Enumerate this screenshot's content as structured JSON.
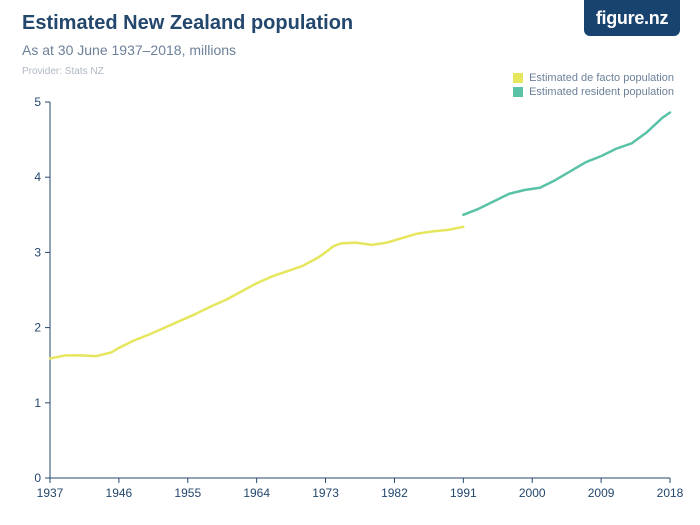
{
  "brand": {
    "name": "figure.nz",
    "bg_color": "#18436f",
    "text_color": "#ffffff"
  },
  "header": {
    "title": "Estimated New Zealand population",
    "subtitle": "As at 30 June 1937–2018, millions",
    "provider": "Provider: Stats NZ",
    "title_fontsize": 20,
    "title_color": "#24476d",
    "subtitle_fontsize": 14,
    "subtitle_color": "#6d8199",
    "provider_fontsize": 10,
    "provider_color": "#b0b8c4"
  },
  "legend": {
    "position": "top-right",
    "fontsize": 11,
    "text_color": "#6d8199",
    "items": [
      {
        "label": "Estimated de facto population",
        "color": "#e6e65e"
      },
      {
        "label": "Estimated resident population",
        "color": "#5ac2a7"
      }
    ]
  },
  "chart": {
    "type": "line",
    "background_color": "#ffffff",
    "axis_color": "#24476d",
    "tick_label_color": "#24476d",
    "tick_fontsize": 12,
    "xlim": [
      1937,
      2018
    ],
    "ylim": [
      0,
      5
    ],
    "ytick_step": 1,
    "xticks": [
      1937,
      1946,
      1955,
      1964,
      1973,
      1982,
      1991,
      2000,
      2009,
      2018
    ],
    "line_width": 2.5,
    "series": [
      {
        "name": "Estimated de facto population",
        "color": "#e6e65e",
        "points": [
          [
            1937,
            1.59
          ],
          [
            1939,
            1.63
          ],
          [
            1941,
            1.63
          ],
          [
            1943,
            1.62
          ],
          [
            1945,
            1.67
          ],
          [
            1946,
            1.73
          ],
          [
            1948,
            1.83
          ],
          [
            1950,
            1.91
          ],
          [
            1952,
            2.0
          ],
          [
            1954,
            2.09
          ],
          [
            1956,
            2.18
          ],
          [
            1958,
            2.28
          ],
          [
            1960,
            2.37
          ],
          [
            1962,
            2.48
          ],
          [
            1964,
            2.59
          ],
          [
            1966,
            2.68
          ],
          [
            1968,
            2.75
          ],
          [
            1970,
            2.82
          ],
          [
            1972,
            2.93
          ],
          [
            1973,
            3.0
          ],
          [
            1974,
            3.08
          ],
          [
            1975,
            3.12
          ],
          [
            1977,
            3.13
          ],
          [
            1979,
            3.1
          ],
          [
            1981,
            3.13
          ],
          [
            1983,
            3.19
          ],
          [
            1985,
            3.25
          ],
          [
            1987,
            3.28
          ],
          [
            1989,
            3.3
          ],
          [
            1991,
            3.34
          ]
        ]
      },
      {
        "name": "Estimated resident population",
        "color": "#5ac2a7",
        "points": [
          [
            1991,
            3.5
          ],
          [
            1993,
            3.58
          ],
          [
            1995,
            3.68
          ],
          [
            1997,
            3.78
          ],
          [
            1999,
            3.83
          ],
          [
            2001,
            3.86
          ],
          [
            2003,
            3.96
          ],
          [
            2005,
            4.08
          ],
          [
            2007,
            4.2
          ],
          [
            2009,
            4.28
          ],
          [
            2011,
            4.38
          ],
          [
            2013,
            4.45
          ],
          [
            2015,
            4.6
          ],
          [
            2017,
            4.79
          ],
          [
            2018,
            4.86
          ]
        ]
      }
    ]
  }
}
